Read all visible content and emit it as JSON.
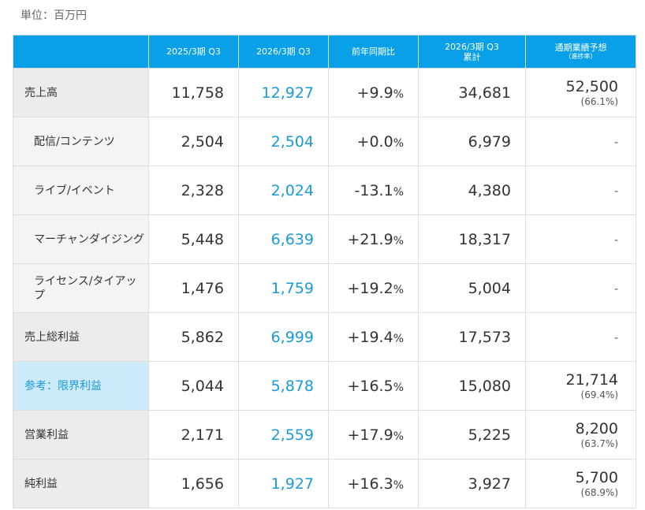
{
  "unit_label": "単位：百万円",
  "headers": {
    "prev_q3": "2025/3期 Q3",
    "curr_q3": "2026/3期 Q3",
    "yoy": "前年同期比",
    "cum_line1": "2026/3期 Q3",
    "cum_line2": "累計",
    "forecast": "通期業績予想",
    "forecast_sub": "（進捗率）"
  },
  "rows": [
    {
      "label": "売上高",
      "prev": "11,758",
      "curr": "12,927",
      "yoy": "+9.9",
      "pct": "%",
      "cum": "34,681",
      "fc": "52,500",
      "rate": "(66.1%)"
    },
    {
      "label": "配信/コンテンツ",
      "prev": "2,504",
      "curr": "2,504",
      "yoy": "+0.0",
      "pct": "%",
      "cum": "6,979",
      "fc_dash": "-"
    },
    {
      "label": "ライブ/イベント",
      "prev": "2,328",
      "curr": "2,024",
      "yoy": "-13.1",
      "pct": "%",
      "cum": "4,380",
      "fc_dash": "-"
    },
    {
      "label": "マーチャンダイジング",
      "prev": "5,448",
      "curr": "6,639",
      "yoy": "+21.9",
      "pct": "%",
      "cum": "18,317",
      "fc_dash": "-"
    },
    {
      "label": "ライセンス/タイアップ",
      "prev": "1,476",
      "curr": "1,759",
      "yoy": "+19.2",
      "pct": "%",
      "cum": "5,004",
      "fc_dash": "-"
    },
    {
      "label": "売上総利益",
      "prev": "5,862",
      "curr": "6,999",
      "yoy": "+19.4",
      "pct": "%",
      "cum": "17,573",
      "fc_dash": "-"
    },
    {
      "label": "参考：限界利益",
      "prev": "5,044",
      "curr": "5,878",
      "yoy": "+16.5",
      "pct": "%",
      "cum": "15,080",
      "fc": "21,714",
      "rate": "(69.4%)"
    },
    {
      "label": "営業利益",
      "prev": "2,171",
      "curr": "2,559",
      "yoy": "+17.9",
      "pct": "%",
      "cum": "5,225",
      "fc": "8,200",
      "rate": "(63.7%)"
    },
    {
      "label": "純利益",
      "prev": "1,656",
      "curr": "1,927",
      "yoy": "+16.3",
      "pct": "%",
      "cum": "3,927",
      "fc": "5,700",
      "rate": "(68.9%)"
    }
  ]
}
